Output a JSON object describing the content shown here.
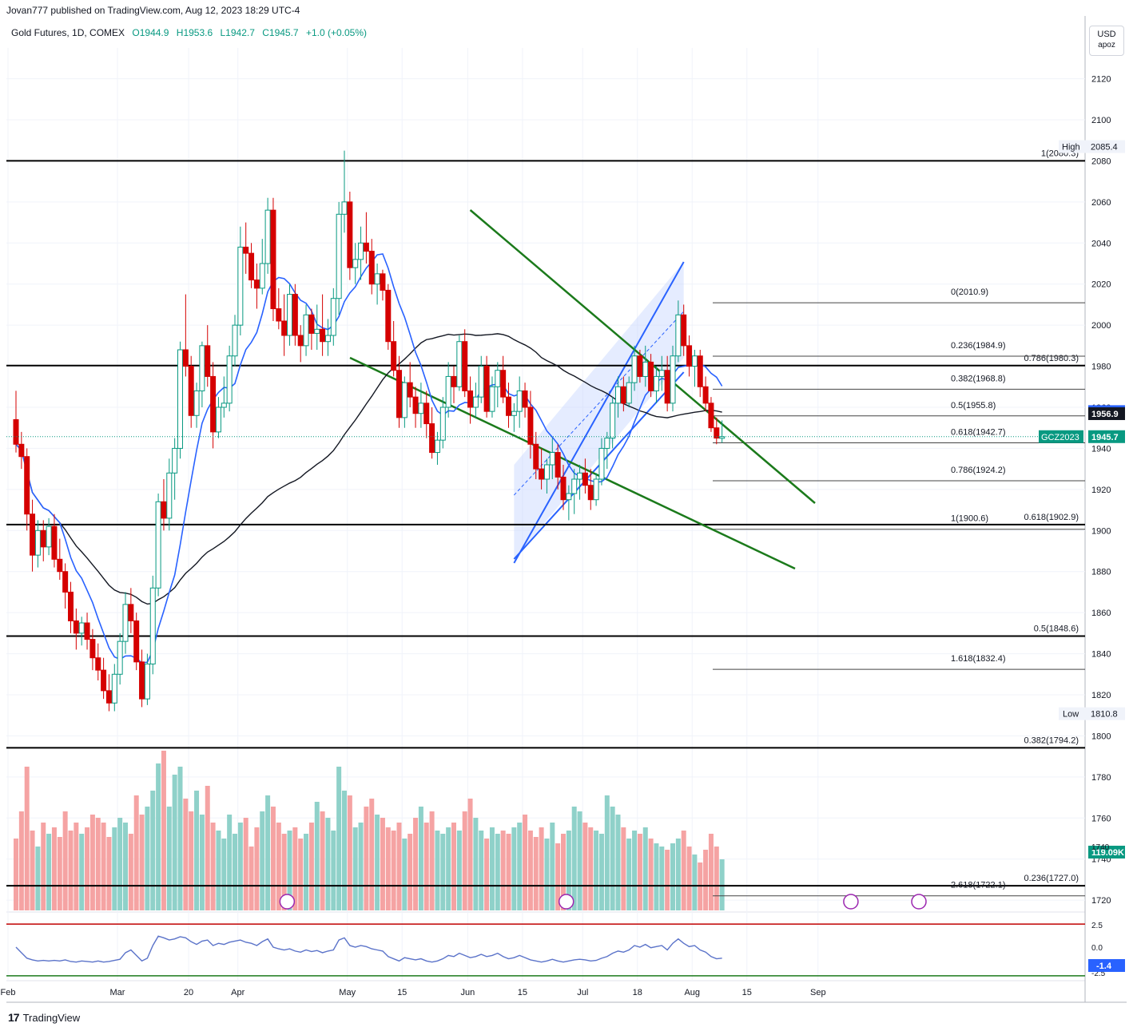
{
  "header": {
    "published": "Jovan777 published on TradingView.com, Aug 12, 2023 18:29 UTC-4",
    "symbol": "Gold Futures, 1D, COMEX",
    "open": "O1944.9",
    "high": "H1953.6",
    "low": "L1942.7",
    "close": "C1945.7",
    "change": "+1.0 (+0.05%)"
  },
  "currency": {
    "unit": "USD",
    "sub": "apoz"
  },
  "footer": {
    "brand": "TradingView",
    "logo_mark": "17"
  },
  "colors": {
    "up": "#089981",
    "down": "#d50000",
    "vol_up": "#8fd1c9",
    "vol_down": "#f5a3a3",
    "ma_fast": "#2962ff",
    "ma_slow": "#131722",
    "trendline": "#1b7a1b",
    "channel": "#2962ff",
    "channel_fill": "#c5d5ff",
    "fib": "#444444",
    "rsi": "#5b73c9",
    "rsi_upper": "#c00000",
    "rsi_lower": "#1b7a1b"
  },
  "chart_data": {
    "type": "candlestick",
    "title": "Gold Futures, 1D, COMEX",
    "ylim": [
      1715,
      2135
    ],
    "y_ticks": [
      1720,
      1740,
      1760,
      1780,
      1800,
      1820,
      1840,
      1860,
      1880,
      1900,
      1920,
      1940,
      1960,
      1980,
      2000,
      2020,
      2040,
      2060,
      2080,
      2100,
      2120
    ],
    "x_tick_labels": [
      {
        "label": "Feb",
        "day": 0
      },
      {
        "label": "Mar",
        "day": 20
      },
      {
        "label": "20",
        "day": 33
      },
      {
        "label": "Apr",
        "day": 42
      },
      {
        "label": "May",
        "day": 62
      },
      {
        "label": "15",
        "day": 72
      },
      {
        "label": "Jun",
        "day": 84
      },
      {
        "label": "15",
        "day": 94
      },
      {
        "label": "Jul",
        "day": 105
      },
      {
        "label": "18",
        "day": 115
      },
      {
        "label": "Aug",
        "day": 125
      },
      {
        "label": "15",
        "day": 135
      },
      {
        "label": "Sep",
        "day": 148
      }
    ],
    "candles": [
      [
        1954,
        1968,
        1938,
        1942
      ],
      [
        1942,
        1948,
        1930,
        1936
      ],
      [
        1936,
        1940,
        1900,
        1908
      ],
      [
        1908,
        1915,
        1880,
        1888
      ],
      [
        1888,
        1905,
        1882,
        1900
      ],
      [
        1900,
        1905,
        1885,
        1892
      ],
      [
        1892,
        1906,
        1888,
        1902
      ],
      [
        1902,
        1908,
        1882,
        1886
      ],
      [
        1886,
        1896,
        1876,
        1880
      ],
      [
        1880,
        1884,
        1862,
        1870
      ],
      [
        1870,
        1875,
        1850,
        1856
      ],
      [
        1856,
        1862,
        1842,
        1850
      ],
      [
        1850,
        1858,
        1844,
        1855
      ],
      [
        1855,
        1860,
        1842,
        1847
      ],
      [
        1847,
        1852,
        1832,
        1838
      ],
      [
        1838,
        1845,
        1827,
        1832
      ],
      [
        1832,
        1838,
        1818,
        1822
      ],
      [
        1822,
        1830,
        1812,
        1816
      ],
      [
        1816,
        1835,
        1812,
        1830
      ],
      [
        1830,
        1850,
        1825,
        1846
      ],
      [
        1846,
        1870,
        1840,
        1864
      ],
      [
        1864,
        1872,
        1850,
        1856
      ],
      [
        1856,
        1860,
        1832,
        1836
      ],
      [
        1836,
        1842,
        1814,
        1818
      ],
      [
        1818,
        1840,
        1815,
        1835
      ],
      [
        1835,
        1878,
        1830,
        1872
      ],
      [
        1872,
        1918,
        1868,
        1914
      ],
      [
        1914,
        1925,
        1900,
        1906
      ],
      [
        1906,
        1935,
        1900,
        1928
      ],
      [
        1928,
        1945,
        1915,
        1940
      ],
      [
        1940,
        1992,
        1935,
        1988
      ],
      [
        1988,
        2015,
        1975,
        1980
      ],
      [
        1980,
        1985,
        1950,
        1956
      ],
      [
        1956,
        1972,
        1950,
        1968
      ],
      [
        1968,
        1992,
        1960,
        1990
      ],
      [
        1990,
        2000,
        1970,
        1975
      ],
      [
        1975,
        1982,
        1940,
        1948
      ],
      [
        1948,
        1965,
        1945,
        1960
      ],
      [
        1960,
        1975,
        1955,
        1962
      ],
      [
        1962,
        1990,
        1958,
        1985
      ],
      [
        1985,
        2005,
        1980,
        2000
      ],
      [
        2000,
        2048,
        1995,
        2038
      ],
      [
        2038,
        2050,
        2025,
        2035
      ],
      [
        2035,
        2040,
        2018,
        2022
      ],
      [
        2022,
        2030,
        2008,
        2018
      ],
      [
        2018,
        2042,
        2015,
        2030
      ],
      [
        2030,
        2062,
        2025,
        2056
      ],
      [
        2056,
        2062,
        2002,
        2008
      ],
      [
        2008,
        2018,
        1998,
        2002
      ],
      [
        2002,
        2015,
        1985,
        1995
      ],
      [
        1995,
        2020,
        1990,
        2015
      ],
      [
        2015,
        2020,
        1990,
        1995
      ],
      [
        1995,
        2000,
        1982,
        1990
      ],
      [
        1990,
        2010,
        1985,
        2005
      ],
      [
        2005,
        2008,
        1988,
        1996
      ],
      [
        1996,
        2010,
        1988,
        1998
      ],
      [
        1998,
        2015,
        1985,
        1992
      ],
      [
        1992,
        2003,
        1985,
        1995
      ],
      [
        1995,
        2018,
        1990,
        2013
      ],
      [
        2013,
        2060,
        2005,
        2054
      ],
      [
        2054,
        2085,
        2045,
        2060
      ],
      [
        2060,
        2065,
        2022,
        2028
      ],
      [
        2028,
        2040,
        2020,
        2032
      ],
      [
        2032,
        2048,
        2022,
        2040
      ],
      [
        2040,
        2055,
        2030,
        2036
      ],
      [
        2036,
        2042,
        2015,
        2020
      ],
      [
        2020,
        2030,
        2010,
        2025
      ],
      [
        2025,
        2027,
        2012,
        2017
      ],
      [
        2017,
        2020,
        1988,
        1992
      ],
      [
        1992,
        2002,
        1975,
        1978
      ],
      [
        1978,
        1985,
        1950,
        1955
      ],
      [
        1955,
        1975,
        1950,
        1972
      ],
      [
        1972,
        1982,
        1960,
        1965
      ],
      [
        1965,
        1970,
        1950,
        1957
      ],
      [
        1957,
        1972,
        1950,
        1962
      ],
      [
        1962,
        1968,
        1945,
        1952
      ],
      [
        1952,
        1960,
        1935,
        1938
      ],
      [
        1938,
        1948,
        1932,
        1944
      ],
      [
        1944,
        1965,
        1940,
        1960
      ],
      [
        1960,
        1982,
        1955,
        1975
      ],
      [
        1975,
        1980,
        1962,
        1970
      ],
      [
        1970,
        1995,
        1968,
        1992
      ],
      [
        1992,
        1998,
        1965,
        1968
      ],
      [
        1968,
        1975,
        1952,
        1960
      ],
      [
        1960,
        1972,
        1955,
        1965
      ],
      [
        1965,
        1985,
        1962,
        1980
      ],
      [
        1980,
        1985,
        1955,
        1958
      ],
      [
        1958,
        1975,
        1955,
        1970
      ],
      [
        1970,
        1982,
        1960,
        1978
      ],
      [
        1978,
        1985,
        1962,
        1965
      ],
      [
        1965,
        1972,
        1950,
        1956
      ],
      [
        1956,
        1962,
        1948,
        1958
      ],
      [
        1958,
        1975,
        1950,
        1968
      ],
      [
        1968,
        1972,
        1955,
        1960
      ],
      [
        1960,
        1968,
        1935,
        1942
      ],
      [
        1942,
        1948,
        1925,
        1930
      ],
      [
        1930,
        1940,
        1920,
        1925
      ],
      [
        1925,
        1935,
        1918,
        1932
      ],
      [
        1932,
        1945,
        1925,
        1938
      ],
      [
        1938,
        1942,
        1920,
        1926
      ],
      [
        1926,
        1932,
        1910,
        1915
      ],
      [
        1915,
        1922,
        1905,
        1918
      ],
      [
        1918,
        1930,
        1908,
        1925
      ],
      [
        1925,
        1932,
        1915,
        1928
      ],
      [
        1928,
        1935,
        1918,
        1922
      ],
      [
        1922,
        1930,
        1910,
        1915
      ],
      [
        1915,
        1928,
        1912,
        1925
      ],
      [
        1925,
        1945,
        1922,
        1940
      ],
      [
        1940,
        1948,
        1930,
        1945
      ],
      [
        1945,
        1965,
        1940,
        1962
      ],
      [
        1962,
        1975,
        1955,
        1970
      ],
      [
        1970,
        1975,
        1958,
        1962
      ],
      [
        1962,
        1975,
        1960,
        1972
      ],
      [
        1972,
        1990,
        1968,
        1985
      ],
      [
        1985,
        1988,
        1972,
        1975
      ],
      [
        1975,
        1990,
        1970,
        1982
      ],
      [
        1982,
        1986,
        1965,
        1968
      ],
      [
        1968,
        1980,
        1962,
        1975
      ],
      [
        1975,
        1985,
        1968,
        1978
      ],
      [
        1978,
        1985,
        1958,
        1962
      ],
      [
        1962,
        1990,
        1958,
        1985
      ],
      [
        1985,
        2012,
        1982,
        2005
      ],
      [
        2005,
        2010,
        1985,
        1990
      ],
      [
        1990,
        1995,
        1975,
        1980
      ],
      [
        1980,
        1988,
        1970,
        1985
      ],
      [
        1985,
        1988,
        1965,
        1970
      ],
      [
        1970,
        1975,
        1958,
        1962
      ],
      [
        1962,
        1965,
        1948,
        1950
      ],
      [
        1950,
        1955,
        1942,
        1945
      ],
      [
        1944.9,
        1953.6,
        1942.7,
        1945.7
      ]
    ],
    "volume_relative": [
      0.45,
      0.62,
      0.9,
      0.5,
      0.4,
      0.55,
      0.48,
      0.52,
      0.46,
      0.62,
      0.5,
      0.55,
      0.48,
      0.52,
      0.6,
      0.58,
      0.55,
      0.46,
      0.52,
      0.58,
      0.55,
      0.48,
      0.72,
      0.6,
      0.65,
      0.75,
      0.92,
      1.0,
      0.65,
      0.85,
      0.9,
      0.7,
      0.62,
      0.75,
      0.6,
      0.78,
      0.55,
      0.5,
      0.45,
      0.6,
      0.48,
      0.55,
      0.58,
      0.4,
      0.52,
      0.62,
      0.72,
      0.65,
      0.55,
      0.48,
      0.5,
      0.52,
      0.45,
      0.48,
      0.55,
      0.68,
      0.62,
      0.58,
      0.5,
      0.9,
      0.75,
      0.72,
      0.52,
      0.55,
      0.65,
      0.7,
      0.6,
      0.58,
      0.52,
      0.5,
      0.55,
      0.45,
      0.48,
      0.58,
      0.65,
      0.55,
      0.62,
      0.5,
      0.48,
      0.52,
      0.55,
      0.5,
      0.62,
      0.7,
      0.58,
      0.5,
      0.45,
      0.52,
      0.48,
      0.5,
      0.48,
      0.52,
      0.55,
      0.6,
      0.5,
      0.46,
      0.52,
      0.45,
      0.55,
      0.42,
      0.48,
      0.5,
      0.65,
      0.62,
      0.55,
      0.52,
      0.5,
      0.48,
      0.72,
      0.65,
      0.6,
      0.52,
      0.45,
      0.5,
      0.48,
      0.52,
      0.45,
      0.42,
      0.4,
      0.38,
      0.42,
      0.45,
      0.5,
      0.4,
      0.35,
      0.3,
      0.38,
      0.48,
      0.4,
      0.32
    ],
    "rsi": [
      55,
      45,
      35,
      32,
      30,
      31,
      30,
      31,
      30,
      32,
      29,
      28,
      30,
      29,
      28,
      30,
      28,
      29,
      31,
      33,
      45,
      50,
      40,
      30,
      35,
      58,
      75,
      72,
      68,
      70,
      74,
      72,
      65,
      60,
      66,
      68,
      58,
      62,
      60,
      64,
      66,
      68,
      64,
      62,
      58,
      65,
      70,
      55,
      52,
      50,
      52,
      48,
      46,
      50,
      47,
      49,
      45,
      48,
      50,
      68,
      72,
      58,
      55,
      58,
      56,
      52,
      50,
      48,
      38,
      34,
      30,
      36,
      34,
      32,
      34,
      30,
      28,
      30,
      34,
      40,
      38,
      44,
      40,
      36,
      38,
      42,
      38,
      40,
      44,
      38,
      34,
      36,
      40,
      36,
      32,
      30,
      28,
      30,
      33,
      30,
      28,
      30,
      32,
      33,
      32,
      30,
      31,
      35,
      38,
      44,
      48,
      46,
      50,
      58,
      55,
      60,
      54,
      56,
      58,
      50,
      62,
      70,
      62,
      56,
      58,
      50,
      46,
      38,
      34,
      35
    ],
    "ma_fast_relative": "short-period moving average (blue)",
    "ma_slow_relative": "long-period moving average (black)",
    "volume_axis_tick": "1740",
    "rsi_ticks": [
      "2.5",
      "0.0",
      "-2.5"
    ],
    "rsi_current": "-1.4",
    "volume_current": "119.09K",
    "price_tags": [
      {
        "label": "1957.9",
        "value": 1957.9
      },
      {
        "label": "1956.9",
        "value": 1956.9
      },
      {
        "label": "1945.7",
        "value": 1945.7,
        "symbol": "GCZ2023"
      }
    ],
    "high_marker": {
      "label": "High",
      "value": "2085.4"
    },
    "low_marker": {
      "label": "Low",
      "value": "1810.8"
    },
    "horizontal_levels": [
      {
        "value": 2080,
        "label": "1(2080.3)"
      },
      {
        "value": 1980.3,
        "label": "0.786(1980.3)"
      },
      {
        "value": 1902.9,
        "label": "0.618(1902.9)"
      },
      {
        "value": 1848.6,
        "label": "0.5(1848.6)"
      },
      {
        "value": 1794.2,
        "label": "0.382(1794.2)"
      },
      {
        "value": 1727.0,
        "label": "0.236(1727.0)"
      }
    ],
    "fib_levels": [
      {
        "value": 2010.9,
        "label": "0(2010.9)"
      },
      {
        "value": 1984.9,
        "label": "0.236(1984.9)"
      },
      {
        "value": 1968.8,
        "label": "0.382(1968.8)"
      },
      {
        "value": 1955.8,
        "label": "0.5(1955.8)"
      },
      {
        "value": 1942.7,
        "label": "0.618(1942.7)"
      },
      {
        "value": 1924.2,
        "label": "0.786(1924.2)"
      },
      {
        "value": 1900.6,
        "label": "1(1900.6)"
      },
      {
        "value": 1832.4,
        "label": "1.618(1832.4)"
      },
      {
        "value": 1722.1,
        "label": "2.618(1722.1)"
      }
    ]
  }
}
